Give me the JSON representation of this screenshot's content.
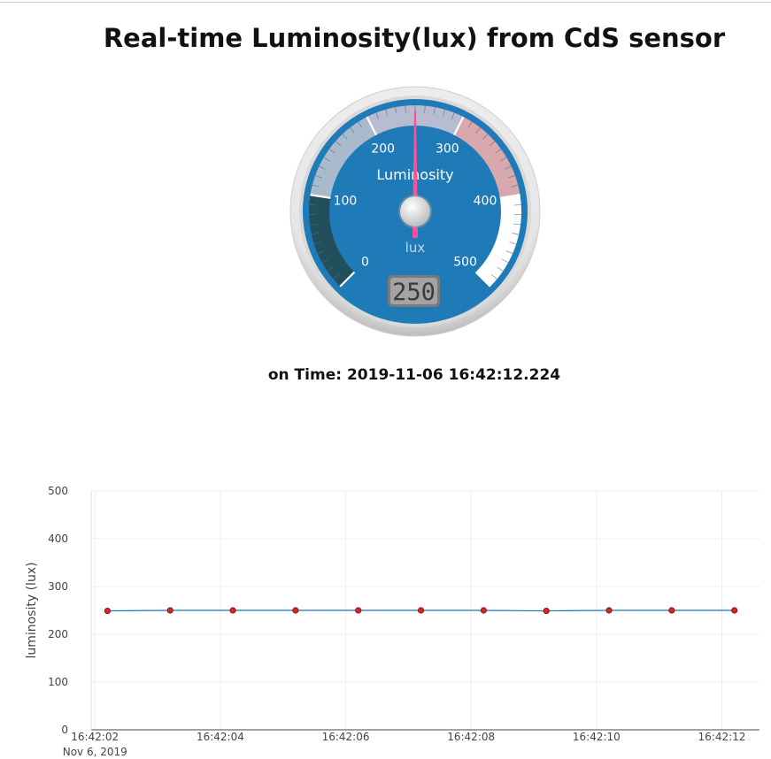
{
  "page": {
    "title": "Real-time Luminosity(lux) from CdS sensor",
    "time_label": "on Time:",
    "time_value": "2019-11-06 16:42:12.224"
  },
  "gauge": {
    "title": "Luminosity",
    "units": "lux",
    "min": 0,
    "max": 500,
    "value": 250,
    "value_display": "250",
    "major_ticks": [
      "0",
      "100",
      "200",
      "300",
      "400",
      "500"
    ],
    "bands": [
      {
        "from": 0,
        "to": 100,
        "color": "#234f5c"
      },
      {
        "from": 100,
        "to": 200,
        "color": "#a8bacb"
      },
      {
        "from": 200,
        "to": 300,
        "color": "#b7bcd1"
      },
      {
        "from": 300,
        "to": 400,
        "color": "#d7a8ad"
      },
      {
        "from": 400,
        "to": 500,
        "color": "#ffffff"
      }
    ],
    "colors": {
      "plate": "#1f7ab8",
      "needle": "#ff4f9a",
      "value_box": "#a3a3a3"
    }
  },
  "chart_data": {
    "type": "line",
    "title": "",
    "xlabel": "",
    "ylabel": "luminosity (lux)",
    "ylim": [
      0,
      500
    ],
    "yticks": [
      0,
      100,
      200,
      300,
      400,
      500
    ],
    "x_date_label": "Nov 6, 2019",
    "xticks": [
      "16:42:02",
      "16:42:04",
      "16:42:06",
      "16:42:08",
      "16:42:10",
      "16:42:12"
    ],
    "xlim": [
      "16:42:01.94",
      "16:42:12.60"
    ],
    "grid": true,
    "series": [
      {
        "x": [
          "16:42:02.2",
          "16:42:03.2",
          "16:42:04.2",
          "16:42:05.2",
          "16:42:06.2",
          "16:42:07.2",
          "16:42:08.2",
          "16:42:09.2",
          "16:42:10.2",
          "16:42:11.2",
          "16:42:12.2"
        ],
        "y": [
          249,
          250,
          250,
          250,
          250,
          250,
          250,
          249,
          250,
          250,
          250
        ],
        "line_color": "#1f77b4",
        "marker_color": "#d62728"
      }
    ]
  }
}
